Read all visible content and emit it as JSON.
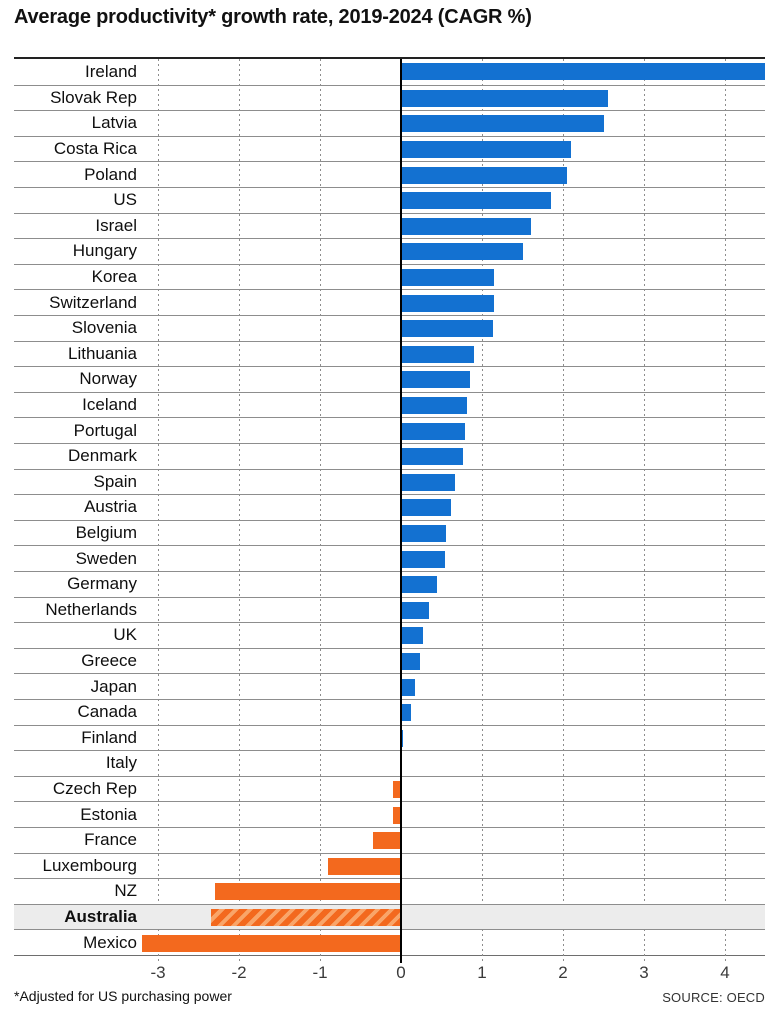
{
  "title": "Average productivity* growth rate, 2019-2024 (CAGR %)",
  "footnote": "*Adjusted for US purchasing power",
  "source": "SOURCE: OECD",
  "colors": {
    "positive": "#1371d1",
    "negative": "#f3691e",
    "hatch_light": "#f9a569",
    "highlight_bg": "#ececec",
    "grid": "#8d8d8d",
    "zero_axis": "#000000"
  },
  "chart_data": {
    "type": "bar",
    "orientation": "horizontal",
    "title": "Average productivity* growth rate, 2019-2024 (CAGR %)",
    "xlabel": "",
    "ylabel": "",
    "x_ticks": [
      -3,
      -2,
      -1,
      0,
      1,
      2,
      3,
      4
    ],
    "xlim": [
      -3.4,
      4.5
    ],
    "grid": "dotted-vertical",
    "legend": "none",
    "highlight_category": "Australia",
    "highlight_style": "diagonal-hatch, bold label, grey row background",
    "categories": [
      "Ireland",
      "Slovak Rep",
      "Latvia",
      "Costa Rica",
      "Poland",
      "US",
      "Israel",
      "Hungary",
      "Korea",
      "Switzerland",
      "Slovenia",
      "Lithuania",
      "Norway",
      "Iceland",
      "Portugal",
      "Denmark",
      "Spain",
      "Austria",
      "Belgium",
      "Sweden",
      "Germany",
      "Netherlands",
      "UK",
      "Greece",
      "Japan",
      "Canada",
      "Finland",
      "Italy",
      "Czech Rep",
      "Estonia",
      "France",
      "Luxembourg",
      "NZ",
      "Australia",
      "Mexico"
    ],
    "values": [
      4.5,
      2.55,
      2.5,
      2.1,
      2.05,
      1.85,
      1.6,
      1.5,
      1.15,
      1.15,
      1.14,
      0.9,
      0.85,
      0.81,
      0.79,
      0.77,
      0.67,
      0.62,
      0.56,
      0.54,
      0.44,
      0.34,
      0.27,
      0.23,
      0.17,
      0.12,
      0.02,
      0.0,
      -0.1,
      -0.1,
      -0.35,
      -0.9,
      -2.3,
      -2.35,
      -3.2
    ]
  }
}
